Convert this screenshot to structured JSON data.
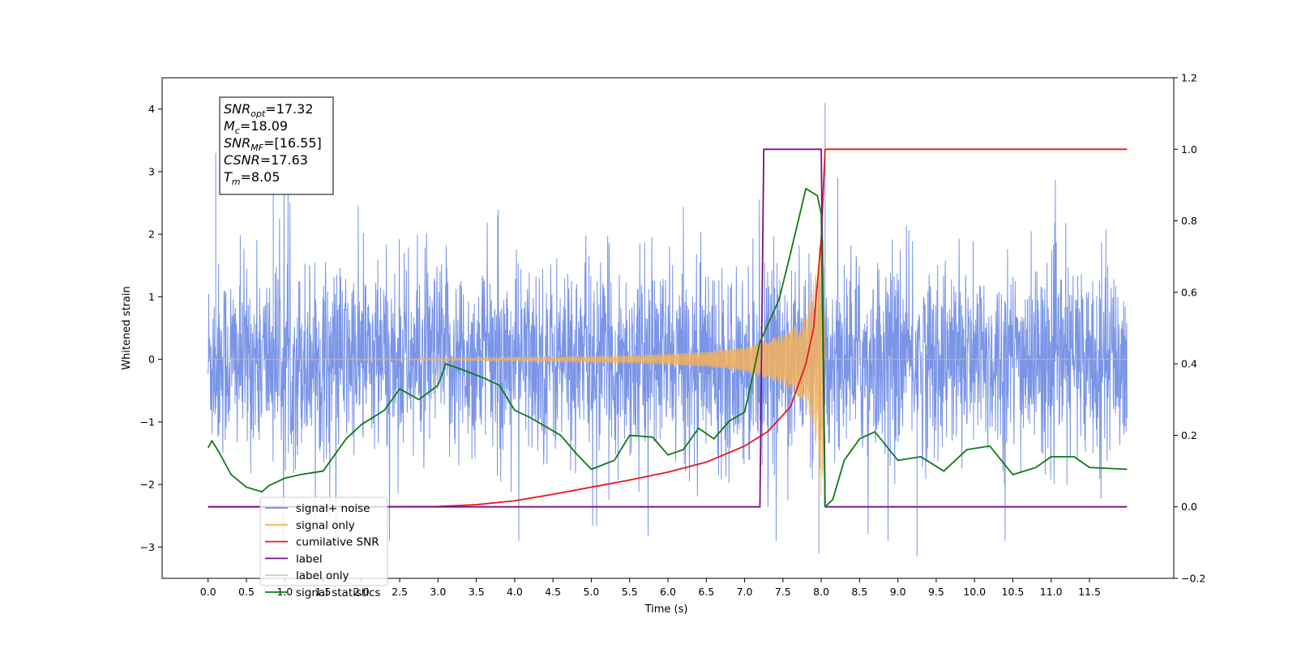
{
  "chart_data": {
    "type": "line",
    "xlabel": "Time (s)",
    "ylabel": "Whitened strain",
    "xlim": [
      -0.6,
      12.6
    ],
    "ylim": [
      -3.5,
      4.5
    ],
    "y2lim": [
      -0.2,
      1.2
    ],
    "x_ticks": [
      0.0,
      0.5,
      1.0,
      1.5,
      2.0,
      2.5,
      3.0,
      3.5,
      4.0,
      4.5,
      5.0,
      5.5,
      6.0,
      6.5,
      7.0,
      7.5,
      8.0,
      8.5,
      9.0,
      9.5,
      10.0,
      10.5,
      11.0,
      11.5
    ],
    "x_tick_labels": [
      "0.0",
      "0.5",
      "1.0",
      "1.5",
      "2.0",
      "2.5",
      "3.0",
      "3.5",
      "4.0",
      "4.5",
      "5.0",
      "5.5",
      "6.0",
      "6.5",
      "7.0",
      "7.5",
      "8.0",
      "8.5",
      "9.0",
      "9.5",
      "10.0",
      "10.5",
      "11.0",
      "11.5"
    ],
    "y_ticks": [
      -3,
      -2,
      -1,
      0,
      1,
      2,
      3,
      4
    ],
    "y_tick_labels": [
      "−3",
      "−2",
      "−1",
      "0",
      "1",
      "2",
      "3",
      "4"
    ],
    "y2_ticks": [
      -0.2,
      0.0,
      0.2,
      0.4,
      0.6,
      0.8,
      1.0,
      1.2
    ],
    "y2_tick_labels": [
      "−0.2",
      "0.0",
      "0.2",
      "0.4",
      "0.6",
      "0.8",
      "1.0",
      "1.2"
    ],
    "annotation": {
      "lines": [
        {
          "base": "SNR",
          "sub": "opt",
          "value": "=17.32"
        },
        {
          "base": "M",
          "sub": "c",
          "value": "=18.09"
        },
        {
          "base": "SNR",
          "sub": "MF",
          "value": "=[16.55]"
        },
        {
          "base": "CSNR",
          "sub": "",
          "value": "=17.63"
        },
        {
          "base": "T",
          "sub": "m",
          "value": "=8.05"
        }
      ]
    },
    "series": [
      {
        "name": "signal+ noise",
        "color": "#6c8ae4",
        "axis": "left",
        "kind": "noise",
        "x_range": [
          0.0,
          11.99
        ],
        "noise_amplitude_bounds": [
          -1.5,
          1.4
        ],
        "extreme_values": [
          {
            "x": 0.1,
            "y": 3.3
          },
          {
            "x": 0.85,
            "y": 3.1
          },
          {
            "x": 7.97,
            "y": -3.1
          },
          {
            "x": 8.05,
            "y": 4.1
          },
          {
            "x": 9.25,
            "y": -3.15
          }
        ]
      },
      {
        "name": "signal only",
        "color": "#f5b35a",
        "axis": "left",
        "kind": "chirp",
        "x_range": [
          0.0,
          11.99
        ],
        "merger_time": 8.05,
        "envelope": [
          [
            0.0,
            0.0
          ],
          [
            2.5,
            0.01
          ],
          [
            4.0,
            0.03
          ],
          [
            5.5,
            0.06
          ],
          [
            6.5,
            0.12
          ],
          [
            7.0,
            0.2
          ],
          [
            7.5,
            0.4
          ],
          [
            7.8,
            0.7
          ],
          [
            7.95,
            1.5
          ],
          [
            8.02,
            2.5
          ],
          [
            8.05,
            0.0
          ]
        ]
      },
      {
        "name": "cumilative SNR",
        "color": "#e8191b",
        "axis": "right",
        "points": [
          [
            0.0,
            0.0
          ],
          [
            2.0,
            0.0
          ],
          [
            3.0,
            0.001
          ],
          [
            3.5,
            0.006
          ],
          [
            4.0,
            0.017
          ],
          [
            4.5,
            0.035
          ],
          [
            5.0,
            0.055
          ],
          [
            5.5,
            0.075
          ],
          [
            6.0,
            0.097
          ],
          [
            6.5,
            0.125
          ],
          [
            7.0,
            0.17
          ],
          [
            7.3,
            0.21
          ],
          [
            7.6,
            0.28
          ],
          [
            7.8,
            0.4
          ],
          [
            7.9,
            0.5
          ],
          [
            8.0,
            0.75
          ],
          [
            8.05,
            1.0
          ],
          [
            11.99,
            1.0
          ]
        ]
      },
      {
        "name": "label",
        "color": "#7a0f87",
        "axis": "right",
        "points": [
          [
            0.0,
            0.0
          ],
          [
            7.2,
            0.0
          ],
          [
            7.25,
            1.0
          ],
          [
            8.0,
            1.0
          ],
          [
            8.05,
            0.0
          ],
          [
            11.99,
            0.0
          ]
        ]
      },
      {
        "name": "label only",
        "color": "#cccccc",
        "axis": "right",
        "points": []
      },
      {
        "name": "signal statistics",
        "color": "#0f7a14",
        "axis": "right",
        "points": [
          [
            0.0,
            0.165
          ],
          [
            0.05,
            0.185
          ],
          [
            0.15,
            0.15
          ],
          [
            0.3,
            0.09
          ],
          [
            0.5,
            0.055
          ],
          [
            0.7,
            0.042
          ],
          [
            0.8,
            0.06
          ],
          [
            1.0,
            0.08
          ],
          [
            1.2,
            0.09
          ],
          [
            1.5,
            0.1
          ],
          [
            1.8,
            0.19
          ],
          [
            2.0,
            0.23
          ],
          [
            2.3,
            0.27
          ],
          [
            2.5,
            0.33
          ],
          [
            2.75,
            0.3
          ],
          [
            3.0,
            0.34
          ],
          [
            3.1,
            0.4
          ],
          [
            3.3,
            0.385
          ],
          [
            3.6,
            0.36
          ],
          [
            3.8,
            0.34
          ],
          [
            4.0,
            0.27
          ],
          [
            4.2,
            0.25
          ],
          [
            4.6,
            0.2
          ],
          [
            4.8,
            0.15
          ],
          [
            5.0,
            0.105
          ],
          [
            5.3,
            0.13
          ],
          [
            5.5,
            0.2
          ],
          [
            5.8,
            0.195
          ],
          [
            6.0,
            0.145
          ],
          [
            6.2,
            0.16
          ],
          [
            6.4,
            0.22
          ],
          [
            6.6,
            0.19
          ],
          [
            6.8,
            0.24
          ],
          [
            7.0,
            0.265
          ],
          [
            7.1,
            0.36
          ],
          [
            7.2,
            0.46
          ],
          [
            7.45,
            0.58
          ],
          [
            7.6,
            0.71
          ],
          [
            7.8,
            0.89
          ],
          [
            7.95,
            0.87
          ],
          [
            8.0,
            0.82
          ],
          [
            8.05,
            0.0
          ],
          [
            8.15,
            0.02
          ],
          [
            8.3,
            0.13
          ],
          [
            8.5,
            0.19
          ],
          [
            8.7,
            0.21
          ],
          [
            9.0,
            0.13
          ],
          [
            9.3,
            0.14
          ],
          [
            9.6,
            0.1
          ],
          [
            9.9,
            0.16
          ],
          [
            10.2,
            0.17
          ],
          [
            10.5,
            0.09
          ],
          [
            10.8,
            0.11
          ],
          [
            11.0,
            0.14
          ],
          [
            11.3,
            0.14
          ],
          [
            11.5,
            0.11
          ],
          [
            11.99,
            0.105
          ]
        ]
      }
    ],
    "legend": {
      "placement": "lower-left",
      "entries": [
        {
          "label": "signal+ noise",
          "color": "#6c8ae4"
        },
        {
          "label": "signal only",
          "color": "#f5b35a"
        },
        {
          "label": "cumilative SNR",
          "color": "#e8191b"
        },
        {
          "label": "label",
          "color": "#7a0f87"
        },
        {
          "label": "label only",
          "color": "#cccccc"
        },
        {
          "label": "signal statistics",
          "color": "#0f7a14"
        }
      ]
    }
  }
}
